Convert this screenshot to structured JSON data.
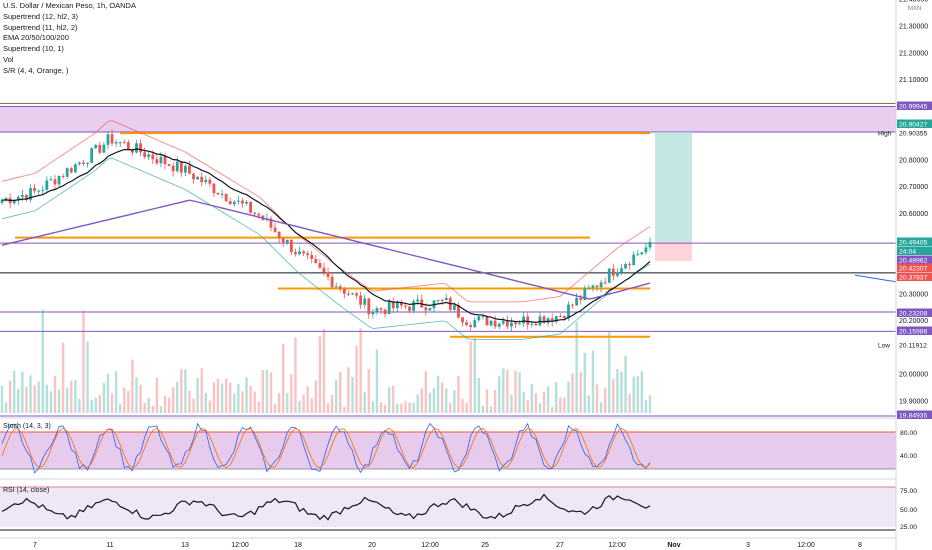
{
  "header": {
    "title": "U.S. Dollar / Mexican Peso, 1h, OANDA",
    "indicators": [
      "Supertrend (12, hl2, 3)",
      "Supertrend (11, hl2, 2)",
      "EMA 20/50/100/200",
      "Supertrend (10, 1)",
      "Vol",
      "S/R (4, 4, Orange, )"
    ]
  },
  "colors": {
    "up": "#26a69a",
    "down": "#ef5350",
    "ema_short": "#131722",
    "ema_long": "#7e57c2",
    "sr": "#ff9800",
    "zone": "#e1bee7",
    "target": "#b2dfdb",
    "stop": "#ffcdd2",
    "stoch_bg": "#e1bee7",
    "rsi_bg": "#ede7f6",
    "stoch_k": "#2962ff",
    "stoch_d": "#ff6d00"
  },
  "chart_data": {
    "type": "candlestick",
    "pair": "USD/MXN",
    "timeframe": "1h",
    "currency": "MXN",
    "ylim": [
      19.843,
      21.41
    ],
    "x_ticks": [
      "7",
      "11",
      "13",
      "12:00",
      "18",
      "20",
      "12:00",
      "25",
      "27",
      "12:00",
      "Nov",
      "3",
      "12:00",
      "8"
    ],
    "y_ticks": [
      "21.40000",
      "21.30000",
      "21.20000",
      "21.10000",
      "21.00000",
      "20.80000",
      "20.70000",
      "20.60000",
      "20.30000",
      "20.20000",
      "20.00000",
      "19.90000"
    ],
    "price_labels": [
      {
        "value": "20.99945",
        "color": "#7e57c2"
      },
      {
        "value": "20.90427",
        "color": "#26a69a"
      },
      {
        "value": "20.90355",
        "color": "#ffffff"
      },
      {
        "value": "20.49405",
        "color": "#26a69a"
      },
      {
        "value": "24:04",
        "color": "#26a69a"
      },
      {
        "value": "20.48962",
        "color": "#7e57c2"
      },
      {
        "value": "20.42307",
        "color": "#ef5350"
      },
      {
        "value": "20.37837",
        "color": "#ef5350"
      },
      {
        "value": "20.23208",
        "color": "#7e57c2"
      },
      {
        "value": "20.15986",
        "color": "#7e57c2"
      },
      {
        "value": "20.11912",
        "color": "#ffffff"
      },
      {
        "value": "19.84935",
        "color": "#7e57c2"
      }
    ],
    "high_label": "High",
    "low_label": "Low",
    "high": 20.90355,
    "low": 20.11912,
    "last_price": 20.49405,
    "resistance_zone": [
      20.90427,
      20.99945
    ],
    "horizontal_levels": [
      20.48962,
      20.37837,
      20.23208,
      20.15986
    ],
    "position": {
      "entry": 20.49405,
      "target": 20.90427,
      "stop": 20.42307
    },
    "sr_levels": [
      {
        "value": 20.9,
        "span": [
          "12",
          "26"
        ]
      },
      {
        "value": 20.51,
        "span": [
          "7",
          "12"
        ]
      },
      {
        "value": 20.32,
        "span": [
          "18",
          "24"
        ]
      },
      {
        "value": 20.14,
        "span": [
          "24",
          "28"
        ]
      }
    ],
    "approx_close_path": [
      {
        "x": "7",
        "close": 20.68
      },
      {
        "x": "10",
        "close": 20.83
      },
      {
        "x": "11",
        "close": 20.88
      },
      {
        "x": "13",
        "close": 20.76
      },
      {
        "x": "16",
        "close": 20.59
      },
      {
        "x": "18",
        "close": 20.45
      },
      {
        "x": "19",
        "close": 20.34
      },
      {
        "x": "20",
        "close": 20.24
      },
      {
        "x": "23",
        "close": 20.27
      },
      {
        "x": "24",
        "close": 20.2
      },
      {
        "x": "25",
        "close": 20.2
      },
      {
        "x": "26",
        "close": 20.2
      },
      {
        "x": "27",
        "close": 20.22
      },
      {
        "x": "27 12:00",
        "close": 20.4
      },
      {
        "x": "28",
        "close": 20.494
      }
    ],
    "stoch": {
      "title": "Stoch (14, 3, 3)",
      "ticks": [
        "80.00",
        "40.00"
      ],
      "band": [
        20,
        80
      ],
      "last": 82
    },
    "rsi": {
      "title": "RSI (14, close)",
      "ticks": [
        "75.00",
        "50.00",
        "25.00"
      ],
      "band": [
        30,
        70
      ],
      "last": 68
    }
  }
}
